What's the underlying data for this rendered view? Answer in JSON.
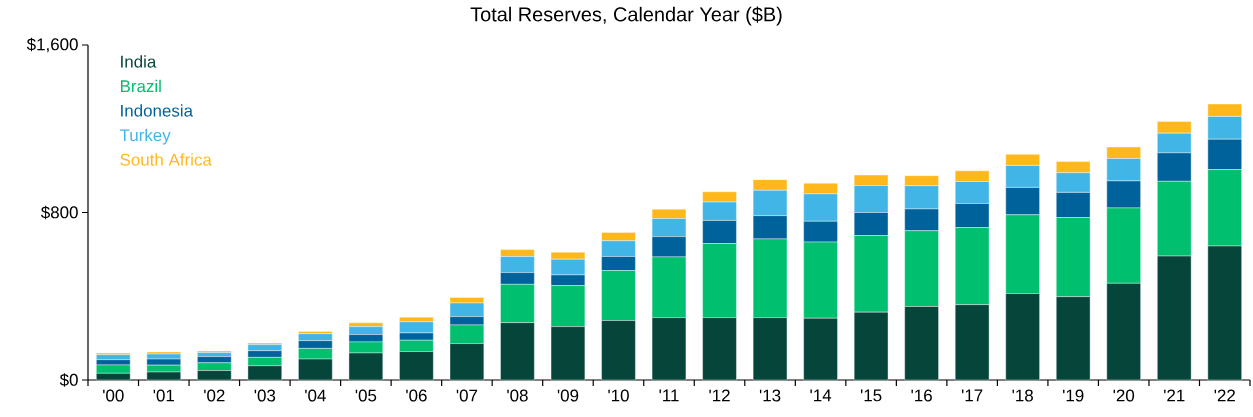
{
  "chart_data": {
    "type": "bar",
    "stacked": true,
    "title": "Total Reserves, Calendar Year ($B)",
    "categories": [
      "'00",
      "'01",
      "'02",
      "'03",
      "'04",
      "'05",
      "'06",
      "'07",
      "'08",
      "'09",
      "'10",
      "'11",
      "'12",
      "'13",
      "'14",
      "'15",
      "'16",
      "'17",
      "'18",
      "'19",
      "'20",
      "'21",
      "'22"
    ],
    "series": [
      {
        "name": "India",
        "color": "#05453a",
        "values": [
          32,
          38,
          45,
          68,
          100,
          129,
          136,
          174,
          274,
          255,
          284,
          298,
          298,
          298,
          295,
          324,
          351,
          360,
          413,
          398,
          462,
          592,
          640
        ]
      },
      {
        "name": "Brazil",
        "color": "#00bf6f",
        "values": [
          40,
          33,
          37,
          40,
          51,
          53,
          54,
          89,
          183,
          196,
          239,
          290,
          354,
          376,
          364,
          366,
          362,
          368,
          376,
          378,
          360,
          357,
          365
        ]
      },
      {
        "name": "Indonesia",
        "color": "#00629b",
        "values": [
          25,
          29,
          30,
          32,
          37,
          35,
          35,
          40,
          56,
          51,
          67,
          97,
          110,
          111,
          99,
          110,
          104,
          115,
          131,
          120,
          129,
          136,
          145
        ]
      },
      {
        "name": "Turkey",
        "color": "#41b6e6",
        "values": [
          24,
          24,
          19,
          29,
          33,
          38,
          53,
          65,
          77,
          75,
          75,
          86,
          88,
          121,
          131,
          129,
          111,
          105,
          105,
          94,
          107,
          94,
          109
        ]
      },
      {
        "name": "South Africa",
        "color": "#ffb81c",
        "values": [
          8,
          10,
          8,
          8,
          11,
          18,
          22,
          26,
          33,
          33,
          40,
          45,
          49,
          51,
          51,
          50,
          48,
          51,
          53,
          53,
          55,
          56,
          59
        ]
      }
    ],
    "ylim": [
      0,
      1600
    ],
    "yticks": [
      {
        "value": 0,
        "label": "$0"
      },
      {
        "value": 800,
        "label": "$800"
      },
      {
        "value": 1600,
        "label": "$1,600"
      }
    ],
    "legend": "top left"
  }
}
